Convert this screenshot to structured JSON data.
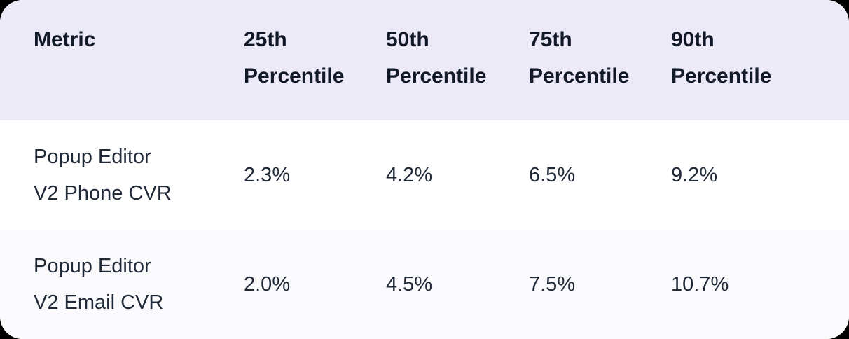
{
  "chart_data": {
    "type": "table",
    "columns": [
      "Metric",
      "25th Percentile",
      "50th Percentile",
      "75th Percentile",
      "90th Percentile"
    ],
    "rows": [
      [
        "Popup Editor V2 Phone CVR",
        "2.3%",
        "4.2%",
        "6.5%",
        "9.2%"
      ],
      [
        "Popup Editor V2 Email CVR",
        "2.0%",
        "4.5%",
        "7.5%",
        "10.7%"
      ]
    ]
  },
  "display": {
    "metric_header": "Metric",
    "columns": [
      {
        "line1": "25th",
        "line2": "Percentile"
      },
      {
        "line1": "50th",
        "line2": "Percentile"
      },
      {
        "line1": "75th",
        "line2": "Percentile"
      },
      {
        "line1": "90th",
        "line2": "Percentile"
      }
    ],
    "rows": [
      {
        "metric_line1": "Popup Editor",
        "metric_line2": "V2 Phone CVR"
      },
      {
        "metric_line1": "Popup Editor",
        "metric_line2": "V2 Email CVR"
      }
    ]
  },
  "colors": {
    "header_bg": "#ECEAF6",
    "row_white_bg": "#FFFFFF",
    "row_tint_bg": "#FAFAFC",
    "header_text": "#111827",
    "body_text": "#1F2937",
    "page_bg": "#000000"
  }
}
